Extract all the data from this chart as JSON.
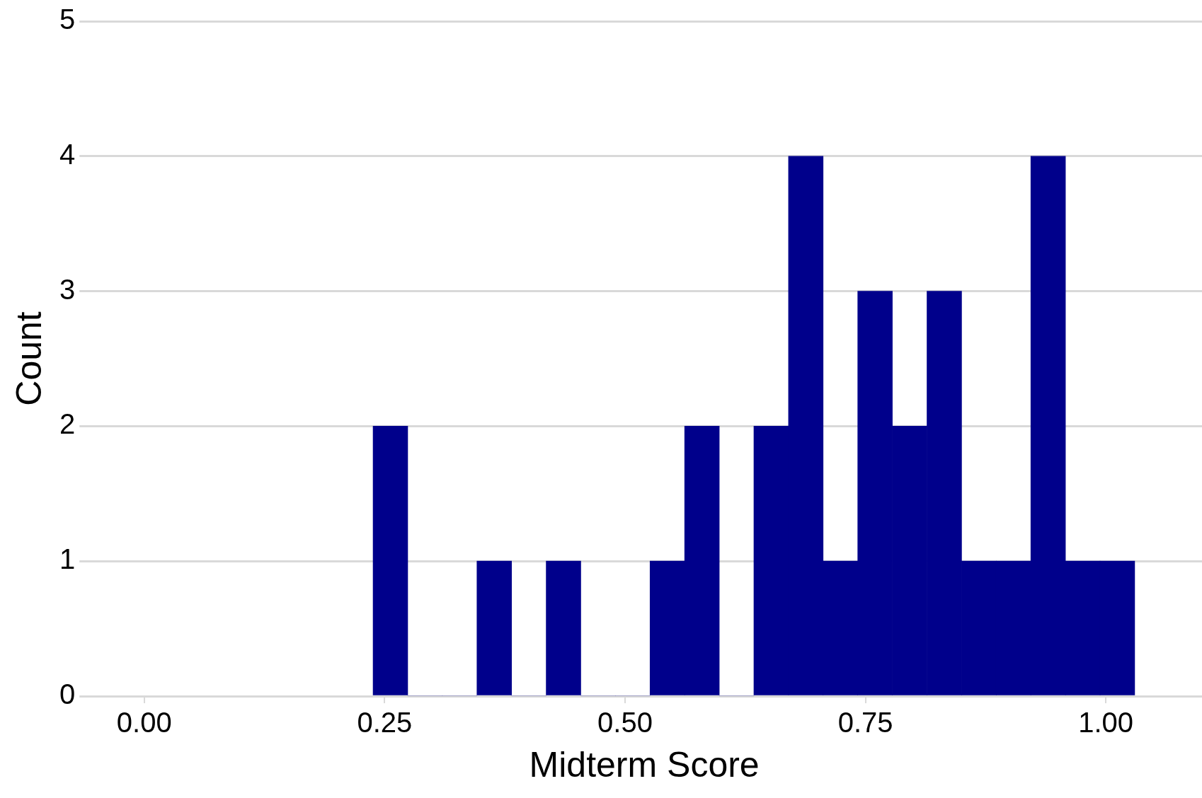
{
  "chart_data": {
    "type": "histogram",
    "xlabel": "Midterm Score",
    "ylabel": "Count",
    "color": "#00008b",
    "bins": [
      0.238,
      0.274,
      0.31,
      0.346,
      0.382,
      0.418,
      0.454,
      0.49,
      0.526,
      0.562,
      0.598,
      0.634,
      0.67,
      0.706,
      0.742,
      0.778,
      0.814,
      0.85,
      0.886,
      0.922,
      0.958,
      0.994,
      1.03
    ],
    "values": [
      2,
      0,
      0,
      1,
      0,
      1,
      0,
      0,
      1,
      2,
      0,
      2,
      4,
      1,
      3,
      2,
      3,
      1,
      1,
      4,
      1,
      1
    ],
    "xlim": [
      -0.06,
      1.1
    ],
    "xticks": [
      {
        "value": 0,
        "label": "0.00"
      },
      {
        "value": 0.25,
        "label": "0.25"
      },
      {
        "value": 0.5,
        "label": "0.50"
      },
      {
        "value": 0.75,
        "label": "0.75"
      },
      {
        "value": 1,
        "label": "1.00"
      }
    ],
    "ylim": [
      0,
      5
    ],
    "yticks": [
      0,
      1,
      2,
      3,
      4,
      5
    ],
    "grid": "y",
    "legend": false
  }
}
